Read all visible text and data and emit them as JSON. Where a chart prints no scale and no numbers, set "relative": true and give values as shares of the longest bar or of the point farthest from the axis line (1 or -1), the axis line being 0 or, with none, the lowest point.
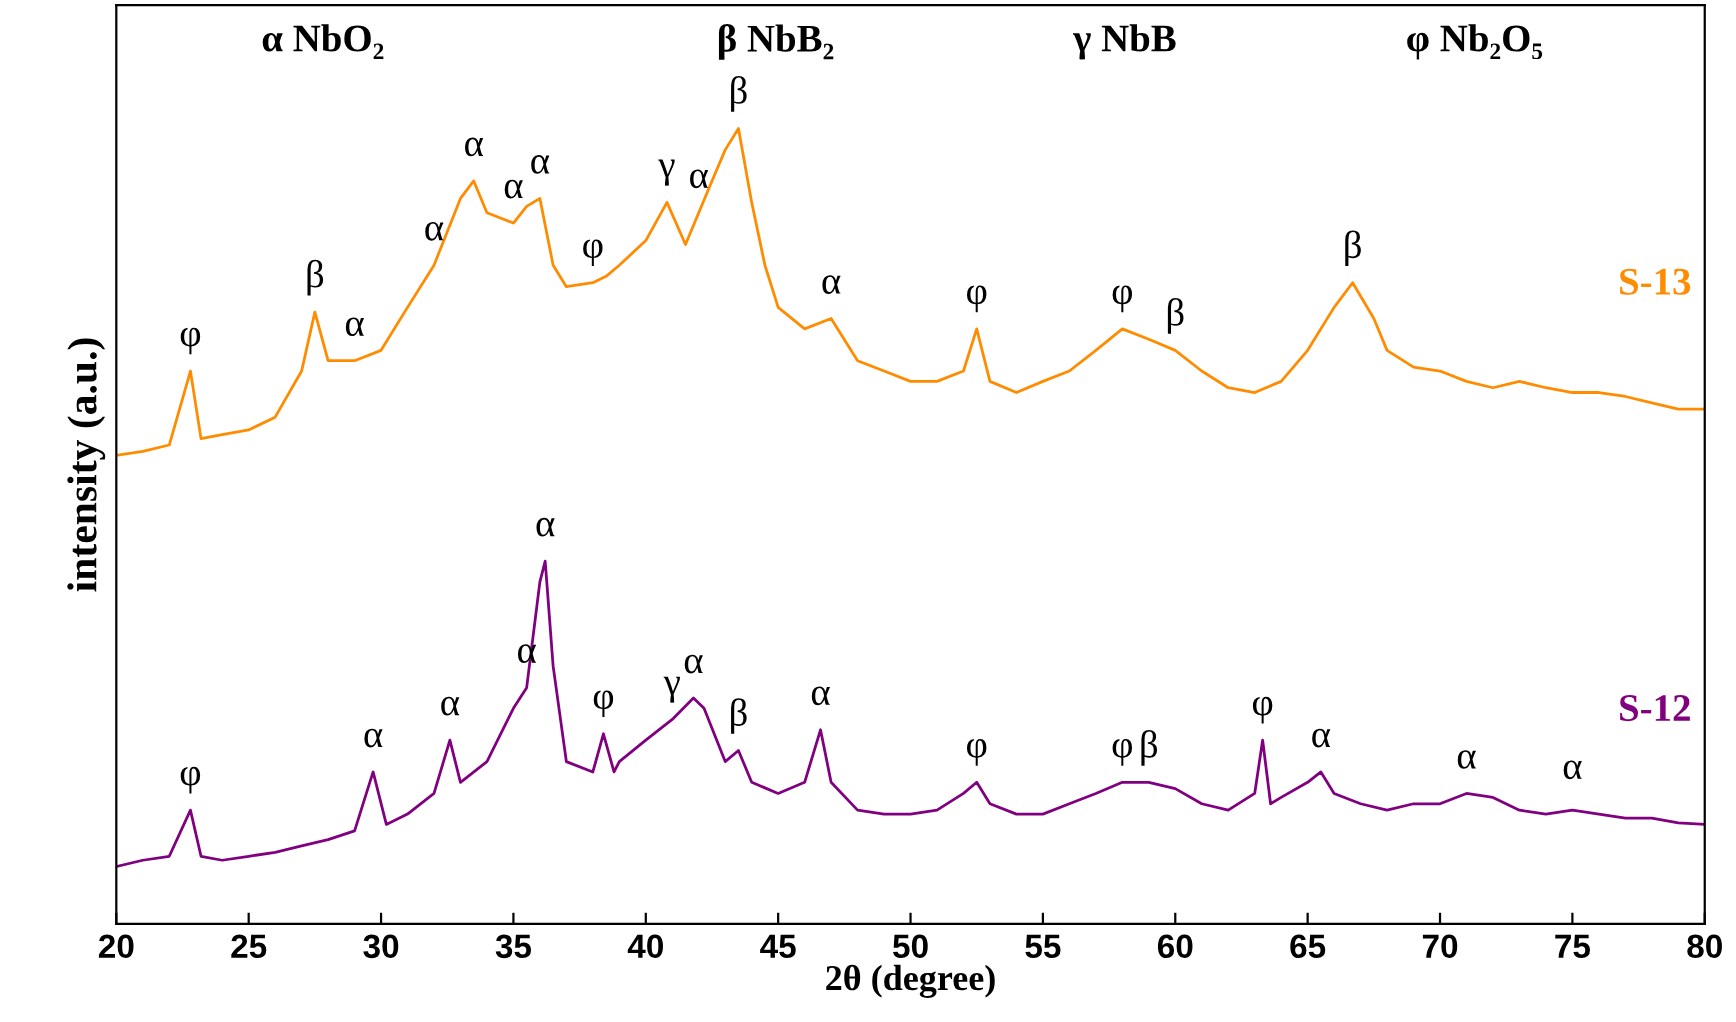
{
  "chart_data": {
    "type": "line",
    "relative": true,
    "xlabel": "2θ (degree)",
    "ylabel": "intensity (a.u.)",
    "xlim": [
      20,
      80
    ],
    "xticks": [
      20,
      25,
      30,
      35,
      40,
      45,
      50,
      55,
      60,
      65,
      70,
      75,
      80
    ],
    "grid": false,
    "legend": false,
    "marker": "none",
    "line_style": "solid",
    "series": [
      {
        "name": "S-13",
        "color": "#ff8c00",
        "x": [
          20,
          21,
          22,
          22.8,
          23.2,
          24,
          25,
          26,
          27,
          27.5,
          28,
          29,
          30,
          31,
          32,
          33,
          33.5,
          34,
          35,
          35.5,
          36,
          36.5,
          37,
          38,
          38.5,
          39,
          40,
          40.8,
          41.5,
          42,
          42.5,
          43,
          43.5,
          44,
          44.5,
          45,
          46,
          47,
          48,
          49,
          50,
          51,
          52,
          52.5,
          53,
          54,
          55,
          56,
          57,
          58,
          59,
          60,
          61,
          62,
          63,
          64,
          65,
          66,
          66.7,
          67.5,
          68,
          69,
          70,
          71,
          72,
          73,
          74,
          75,
          76,
          77,
          78,
          79,
          80
        ],
        "values": [
          0.589,
          0.594,
          0.602,
          0.695,
          0.61,
          0.615,
          0.621,
          0.637,
          0.695,
          0.769,
          0.708,
          0.708,
          0.721,
          0.775,
          0.828,
          0.912,
          0.934,
          0.894,
          0.881,
          0.902,
          0.912,
          0.828,
          0.801,
          0.806,
          0.814,
          0.828,
          0.859,
          0.907,
          0.854,
          0.894,
          0.934,
          0.973,
          1,
          0.907,
          0.828,
          0.775,
          0.748,
          0.761,
          0.708,
          0.695,
          0.682,
          0.682,
          0.695,
          0.748,
          0.682,
          0.668,
          0.682,
          0.695,
          0.721,
          0.748,
          0.735,
          0.721,
          0.695,
          0.674,
          0.668,
          0.682,
          0.721,
          0.775,
          0.806,
          0.761,
          0.721,
          0.7,
          0.695,
          0.682,
          0.674,
          0.682,
          0.674,
          0.668,
          0.668,
          0.663,
          0.655,
          0.647,
          0.647
        ]
      },
      {
        "name": "S-12",
        "color": "#800080",
        "x": [
          20,
          21,
          22,
          22.8,
          23.2,
          24,
          25,
          26,
          27,
          28,
          29,
          29.7,
          30.2,
          31,
          32,
          32.6,
          33,
          34,
          35,
          35.5,
          36,
          36.2,
          36.5,
          37,
          38,
          38.4,
          38.8,
          39,
          40,
          41,
          41.8,
          42.2,
          43,
          43.5,
          44,
          45,
          46,
          46.6,
          47,
          48,
          49,
          50,
          51,
          52,
          52.5,
          53,
          54,
          55,
          56,
          57,
          58,
          59,
          60,
          61,
          62,
          63,
          63.3,
          63.6,
          64,
          65,
          65.5,
          66,
          67,
          68,
          69,
          70,
          71,
          72,
          73,
          74,
          75,
          76,
          77,
          78,
          79,
          80
        ],
        "values": [
          0.072,
          0.08,
          0.085,
          0.143,
          0.085,
          0.08,
          0.085,
          0.09,
          0.098,
          0.106,
          0.117,
          0.191,
          0.125,
          0.138,
          0.164,
          0.231,
          0.178,
          0.204,
          0.271,
          0.297,
          0.43,
          0.456,
          0.324,
          0.204,
          0.191,
          0.239,
          0.191,
          0.204,
          0.231,
          0.257,
          0.284,
          0.271,
          0.204,
          0.218,
          0.178,
          0.164,
          0.178,
          0.244,
          0.178,
          0.143,
          0.138,
          0.138,
          0.143,
          0.164,
          0.178,
          0.151,
          0.138,
          0.138,
          0.151,
          0.164,
          0.178,
          0.178,
          0.17,
          0.151,
          0.143,
          0.164,
          0.231,
          0.151,
          0.159,
          0.178,
          0.191,
          0.164,
          0.151,
          0.143,
          0.151,
          0.151,
          0.164,
          0.159,
          0.143,
          0.138,
          0.143,
          0.138,
          0.133,
          0.133,
          0.127,
          0.125
        ]
      }
    ],
    "annotations": [
      "α NbO₂",
      "β NbB₂",
      "γ NbB",
      "φ Nb₂O₅",
      {
        "text": "φ",
        "x": 22.8,
        "y": 0.695
      },
      {
        "text": "β",
        "x": 27.5,
        "y": 0.769
      },
      {
        "text": "α",
        "x": 29,
        "y": 0.708
      },
      {
        "text": "α",
        "x": 32,
        "y": 0.828
      },
      {
        "text": "α",
        "x": 33.5,
        "y": 0.934
      },
      {
        "text": "α",
        "x": 35,
        "y": 0.881
      },
      {
        "text": "α",
        "x": 36,
        "y": 0.912
      },
      {
        "text": "φ",
        "x": 38,
        "y": 0.806
      },
      {
        "text": "γ",
        "x": 40.8,
        "y": 0.907
      },
      {
        "text": "α",
        "x": 42,
        "y": 0.894
      },
      {
        "text": "β",
        "x": 43.5,
        "y": 1
      },
      {
        "text": "α",
        "x": 47,
        "y": 0.761
      },
      {
        "text": "φ",
        "x": 52.5,
        "y": 0.748
      },
      {
        "text": "φ",
        "x": 58,
        "y": 0.748
      },
      {
        "text": "β",
        "x": 60,
        "y": 0.721
      },
      {
        "text": "β",
        "x": 66.7,
        "y": 0.806
      },
      {
        "text": "φ",
        "x": 22.8,
        "y": 0.143
      },
      {
        "text": "α",
        "x": 29.7,
        "y": 0.191
      },
      {
        "text": "α",
        "x": 32.6,
        "y": 0.231
      },
      {
        "text": "α",
        "x": 35.5,
        "y": 0.297
      },
      {
        "text": "α",
        "x": 36.2,
        "y": 0.456
      },
      {
        "text": "φ",
        "x": 38.4,
        "y": 0.239
      },
      {
        "text": "γ",
        "x": 41,
        "y": 0.257
      },
      {
        "text": "α",
        "x": 41.8,
        "y": 0.284
      },
      {
        "text": "β",
        "x": 43.5,
        "y": 0.218
      },
      {
        "text": "α",
        "x": 46.6,
        "y": 0.244
      },
      {
        "text": "φ",
        "x": 52.5,
        "y": 0.178
      },
      {
        "text": "φ",
        "x": 58,
        "y": 0.178
      },
      {
        "text": "β",
        "x": 59,
        "y": 0.178
      },
      {
        "text": "φ",
        "x": 63.3,
        "y": 0.231
      },
      {
        "text": "α",
        "x": 65.5,
        "y": 0.191
      },
      {
        "text": "α",
        "x": 71,
        "y": 0.164
      },
      {
        "text": "α",
        "x": 75,
        "y": 0.151
      }
    ]
  }
}
